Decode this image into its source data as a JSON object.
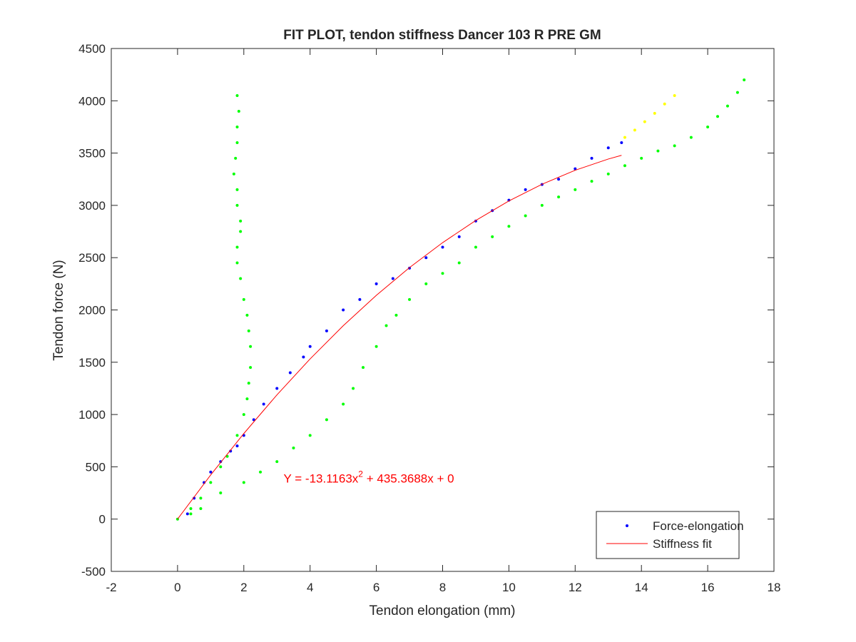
{
  "chart_data": {
    "type": "scatter",
    "title": "FIT PLOT, tendon stiffness Dancer 103 R PRE GM",
    "x_label": "Tendon elongation (mm)",
    "y_label": "Tendon force (N)",
    "annotation": [
      "Y = -13.1163x",
      "2",
      " + 435.3688x + 0"
    ],
    "annotation_color": "#ff0000",
    "xlim": [
      -2,
      18
    ],
    "xticks": [
      -2,
      0,
      2,
      4,
      6,
      8,
      10,
      12,
      14,
      16,
      18
    ],
    "ylim": [
      -500,
      4500
    ],
    "yticks": [
      -500,
      0,
      500,
      1000,
      1500,
      2000,
      2500,
      3000,
      3500,
      4000,
      4500
    ],
    "legend": "lower right",
    "series": [
      {
        "color": "#00ff00",
        "mode": "points",
        "x": [
          0,
          0.4,
          0.7,
          1,
          1.3,
          1.5,
          1.8,
          2.0,
          2.1,
          2.15,
          2.2,
          2.2,
          2.15,
          2.1,
          2.0,
          1.9,
          1.8,
          1.8,
          1.9,
          1.9,
          1.8,
          1.8,
          1.7,
          1.75,
          1.8,
          1.8,
          1.85,
          1.8
        ],
        "values": [
          0,
          100,
          200,
          350,
          500,
          600,
          800,
          1000,
          1150,
          1300,
          1450,
          1650,
          1800,
          1950,
          2100,
          2300,
          2450,
          2600,
          2750,
          2850,
          3000,
          3150,
          3300,
          3450,
          3600,
          3750,
          3900,
          4050
        ]
      },
      {
        "color": "#00ff00",
        "mode": "points",
        "x": [
          0.4,
          0.7,
          1.3,
          2,
          2.5,
          3,
          3.5,
          4,
          4.5,
          5,
          5.3,
          5.6,
          6,
          6.3,
          6.6,
          7,
          7.5,
          8,
          8.5,
          9,
          9.5,
          10,
          10.5,
          11,
          11.5,
          12,
          12.5,
          13,
          13.5,
          14,
          14.5,
          15,
          15.5,
          16,
          16.3,
          16.6,
          16.9,
          17.1
        ],
        "values": [
          50,
          100,
          250,
          350,
          450,
          550,
          680,
          800,
          950,
          1100,
          1250,
          1450,
          1650,
          1850,
          1950,
          2100,
          2250,
          2350,
          2450,
          2600,
          2700,
          2800,
          2900,
          3000,
          3080,
          3150,
          3230,
          3300,
          3380,
          3450,
          3520,
          3570,
          3650,
          3750,
          3850,
          3950,
          4080,
          4200
        ]
      },
      {
        "color": "#ffff00",
        "mode": "points",
        "x": [
          13.5,
          13.8,
          14.1,
          14.4,
          14.7,
          15.0
        ],
        "values": [
          3650,
          3720,
          3800,
          3880,
          3970,
          4050
        ]
      },
      {
        "name": "Force-elongation",
        "color": "#0000ff",
        "mode": "points",
        "x": [
          0.3,
          0.5,
          0.8,
          1,
          1.3,
          1.6,
          1.8,
          2,
          2.3,
          2.6,
          3,
          3.4,
          3.8,
          4,
          4.5,
          5,
          5.5,
          6,
          6.5,
          7,
          7.5,
          8,
          8.5,
          9,
          9.5,
          10,
          10.5,
          11,
          11.5,
          12,
          12.5,
          13,
          13.4
        ],
        "values": [
          50,
          200,
          350,
          450,
          550,
          650,
          700,
          800,
          950,
          1100,
          1250,
          1400,
          1550,
          1650,
          1800,
          2000,
          2100,
          2250,
          2300,
          2400,
          2500,
          2600,
          2700,
          2850,
          2950,
          3050,
          3150,
          3200,
          3250,
          3350,
          3450,
          3550,
          3600
        ]
      },
      {
        "name": "Stiffness fit",
        "color": "#ff0000",
        "mode": "line",
        "x": [
          0,
          1,
          2,
          3,
          4,
          5,
          6,
          7,
          8,
          9,
          10,
          11,
          12,
          13,
          13.4
        ],
        "values": [
          0,
          422.25,
          818.27,
          1188.06,
          1531.61,
          1848.94,
          2140.02,
          2404.88,
          2643.51,
          2855.9,
          3042.06,
          3201.99,
          3335.68,
          3443.14,
          3478.7
        ]
      }
    ]
  }
}
